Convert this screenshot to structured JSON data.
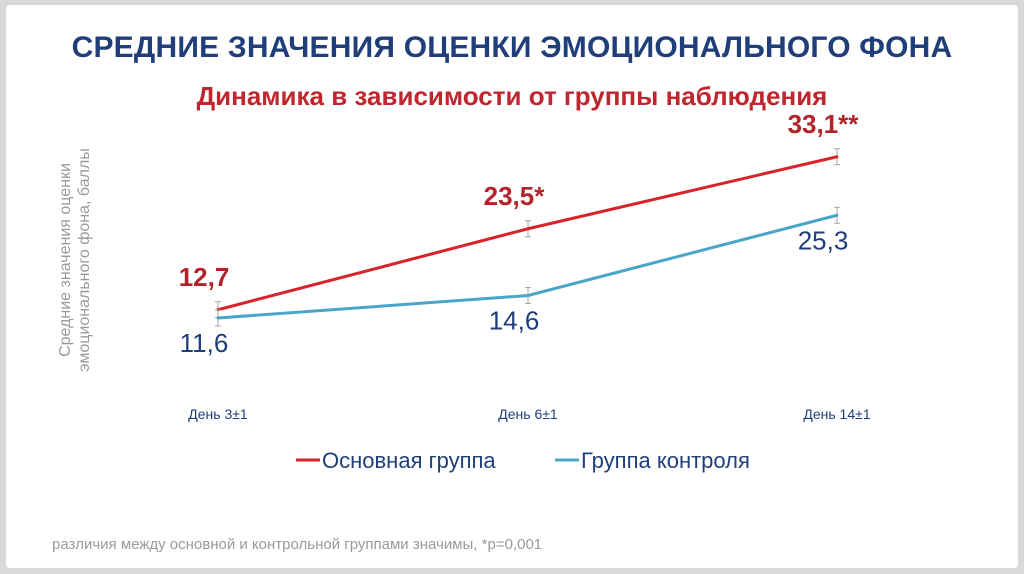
{
  "header": {
    "title": "СРЕДНИЕ ЗНАЧЕНИЯ ОЦЕНКИ ЭМОЦИОНАЛЬНОГО ФОНА",
    "subtitle": "Динамика в зависимости от группы наблюдения"
  },
  "footnote": "различия между основной и контрольной группами значимы, *p=0,001",
  "chart_data": {
    "type": "line",
    "ylabel": "Средние значения оценки эмоционального фона, баллы",
    "categories": [
      "День 3±1",
      "День 6±1",
      "День 14±1"
    ],
    "ylim": [
      0,
      40
    ],
    "grid": false,
    "legend_position": "bottom",
    "series": [
      {
        "name": "Основная группа",
        "color": "#d9232a",
        "values": [
          12.7,
          23.5,
          33.1
        ],
        "labels": [
          "12,7",
          "23,5*",
          "33,1**"
        ]
      },
      {
        "name": "Группа контроля",
        "color": "#4aa6c8",
        "values": [
          11.6,
          14.6,
          25.3
        ],
        "labels": [
          "11,6",
          "14,6",
          "25,3"
        ]
      }
    ]
  }
}
